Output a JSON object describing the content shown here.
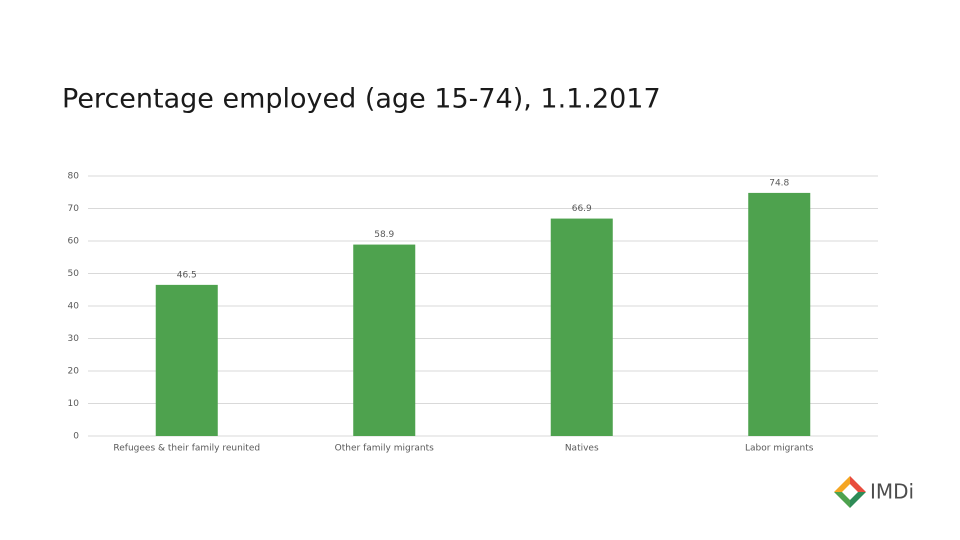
{
  "chart_data": {
    "type": "bar",
    "title": "Percentage employed (age 15-74), 1.1.2017",
    "categories": [
      "Refugees & their family reunited",
      "Other family migrants",
      "Natives",
      "Labor migrants"
    ],
    "values": [
      46.5,
      58.9,
      66.9,
      74.8
    ],
    "color": "#4ea24e",
    "ylim": [
      0,
      80
    ],
    "yticks": [
      0,
      10,
      20,
      30,
      40,
      50,
      60,
      70,
      80
    ],
    "grid": true
  },
  "logo": {
    "text": "IMDi"
  }
}
